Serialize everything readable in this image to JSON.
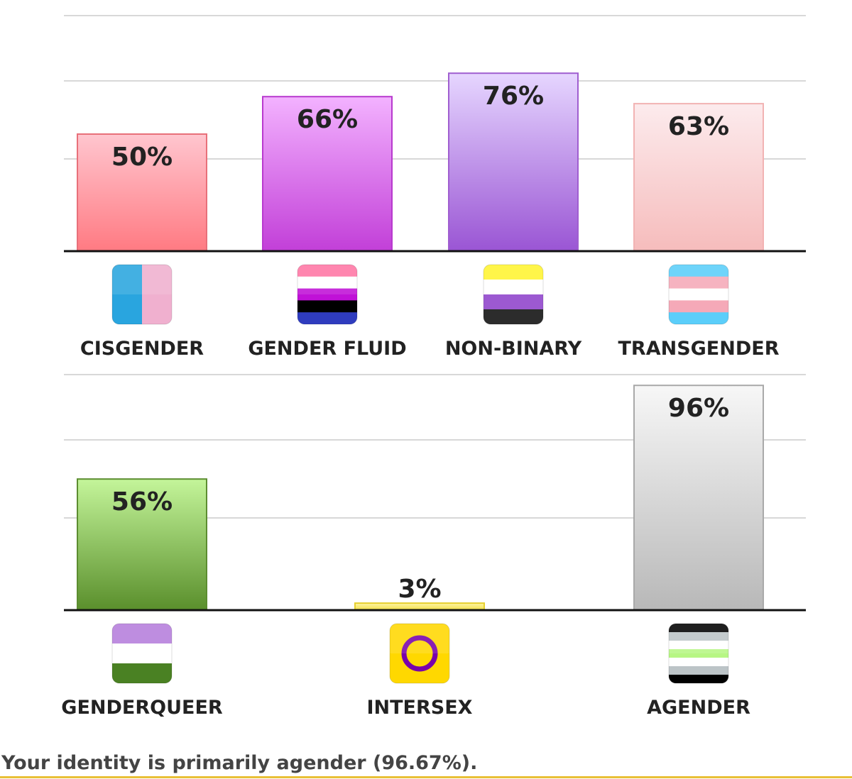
{
  "chart_data": [
    {
      "type": "bar",
      "categories": [
        "CISGENDER",
        "GENDER FLUID",
        "NON-BINARY",
        "TRANSGENDER"
      ],
      "values": [
        50,
        66,
        76,
        63
      ],
      "value_labels": [
        "50%",
        "66%",
        "76%",
        "63%"
      ],
      "ylim": [
        0,
        100
      ],
      "grid": true,
      "icons": [
        "cisgender-flag-icon",
        "gender-fluid-flag-icon",
        "non-binary-flag-icon",
        "transgender-flag-icon"
      ],
      "bar_colors": [
        [
          "#ffc6cf",
          "#ff7a82",
          "#e8707a"
        ],
        [
          "#f3b2ff",
          "#c23fd8",
          "#b83ace"
        ],
        [
          "#e6d6ff",
          "#9a55d4",
          "#a05ed0"
        ],
        [
          "#fcebed",
          "#f6bcbc",
          "#f2b3b3"
        ]
      ]
    },
    {
      "type": "bar",
      "categories": [
        "GENDERQUEER",
        "INTERSEX",
        "AGENDER"
      ],
      "values": [
        56,
        3,
        96
      ],
      "value_labels": [
        "56%",
        "3%",
        "96%"
      ],
      "ylim": [
        0,
        100
      ],
      "grid": true,
      "icons": [
        "genderqueer-flag-icon",
        "intersex-flag-icon",
        "agender-flag-icon"
      ],
      "bar_colors": [
        [
          "#c4f59a",
          "#5a8f2c",
          "#5c8d30"
        ],
        [
          "#fff6a8",
          "#f2de46",
          "#e6cf2e"
        ],
        [
          "#f7f7f7",
          "#b8b8b8",
          "#a9a9a9"
        ]
      ]
    }
  ],
  "result": {
    "text": "Your identity is primarily agender (96.67%)."
  },
  "colors": {
    "grid": "#d8d8d8",
    "baseline": "#111111",
    "label": "#222222",
    "result_text": "#444444",
    "result_rule": "#e8c037"
  }
}
